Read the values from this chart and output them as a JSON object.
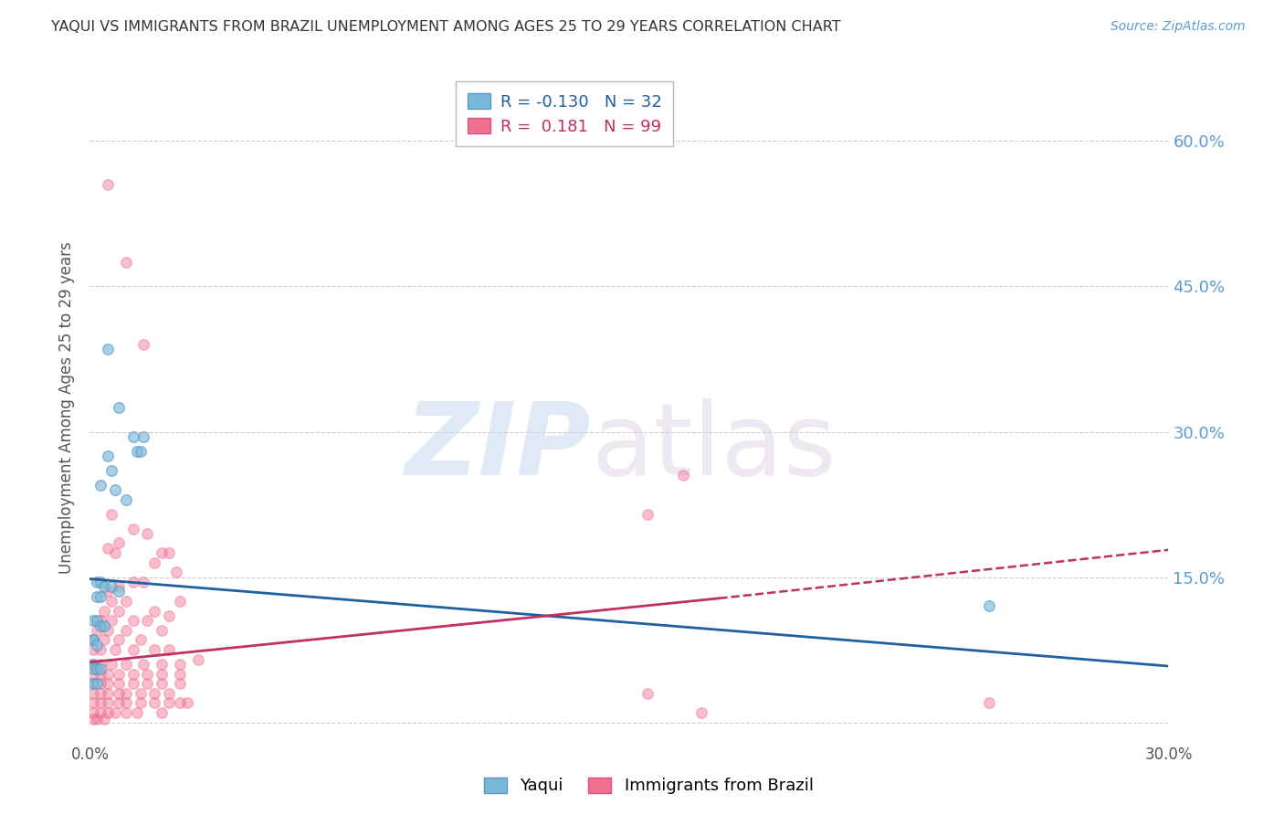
{
  "title": "YAQUI VS IMMIGRANTS FROM BRAZIL UNEMPLOYMENT AMONG AGES 25 TO 29 YEARS CORRELATION CHART",
  "source": "Source: ZipAtlas.com",
  "ylabel": "Unemployment Among Ages 25 to 29 years",
  "xlim": [
    0.0,
    0.3
  ],
  "ylim": [
    -0.02,
    0.67
  ],
  "yticks": [
    0.0,
    0.15,
    0.3,
    0.45,
    0.6
  ],
  "ytick_labels": [
    "",
    "15.0%",
    "30.0%",
    "45.0%",
    "60.0%"
  ],
  "xticks": [
    0.0,
    0.05,
    0.1,
    0.15,
    0.2,
    0.25,
    0.3
  ],
  "xtick_labels": [
    "0.0%",
    "",
    "",
    "",
    "",
    "",
    "30.0%"
  ],
  "yaqui_color": "#7ab8d9",
  "brazil_color": "#f07090",
  "yaqui_edge": "#5a98c0",
  "brazil_edge": "#e05080",
  "yaqui_R": -0.13,
  "yaqui_N": 32,
  "brazil_R": 0.181,
  "brazil_N": 99,
  "background_color": "#ffffff",
  "grid_color": "#cccccc",
  "title_color": "#333333",
  "right_ytick_color": "#5b9bd5",
  "yaqui_line_color": "#2060a0",
  "brazil_line_color": "#c03060",
  "yaqui_scatter": [
    [
      0.005,
      0.385
    ],
    [
      0.008,
      0.325
    ],
    [
      0.012,
      0.295
    ],
    [
      0.015,
      0.295
    ],
    [
      0.005,
      0.275
    ],
    [
      0.006,
      0.26
    ],
    [
      0.003,
      0.245
    ],
    [
      0.007,
      0.24
    ],
    [
      0.01,
      0.23
    ],
    [
      0.013,
      0.28
    ],
    [
      0.014,
      0.28
    ],
    [
      0.002,
      0.145
    ],
    [
      0.003,
      0.145
    ],
    [
      0.004,
      0.14
    ],
    [
      0.006,
      0.14
    ],
    [
      0.008,
      0.135
    ],
    [
      0.002,
      0.13
    ],
    [
      0.003,
      0.13
    ],
    [
      0.001,
      0.105
    ],
    [
      0.002,
      0.105
    ],
    [
      0.003,
      0.1
    ],
    [
      0.004,
      0.1
    ],
    [
      0.001,
      0.085
    ],
    [
      0.001,
      0.085
    ],
    [
      0.002,
      0.08
    ],
    [
      0.001,
      0.06
    ],
    [
      0.001,
      0.055
    ],
    [
      0.002,
      0.055
    ],
    [
      0.003,
      0.055
    ],
    [
      0.001,
      0.04
    ],
    [
      0.002,
      0.04
    ],
    [
      0.25,
      0.12
    ]
  ],
  "brazil_scatter": [
    [
      0.005,
      0.555
    ],
    [
      0.01,
      0.475
    ],
    [
      0.015,
      0.39
    ],
    [
      0.165,
      0.255
    ],
    [
      0.155,
      0.215
    ],
    [
      0.006,
      0.215
    ],
    [
      0.012,
      0.2
    ],
    [
      0.016,
      0.195
    ],
    [
      0.005,
      0.18
    ],
    [
      0.007,
      0.175
    ],
    [
      0.008,
      0.185
    ],
    [
      0.02,
      0.175
    ],
    [
      0.022,
      0.175
    ],
    [
      0.018,
      0.165
    ],
    [
      0.024,
      0.155
    ],
    [
      0.015,
      0.145
    ],
    [
      0.012,
      0.145
    ],
    [
      0.008,
      0.14
    ],
    [
      0.005,
      0.135
    ],
    [
      0.006,
      0.125
    ],
    [
      0.01,
      0.125
    ],
    [
      0.025,
      0.125
    ],
    [
      0.004,
      0.115
    ],
    [
      0.008,
      0.115
    ],
    [
      0.018,
      0.115
    ],
    [
      0.022,
      0.11
    ],
    [
      0.003,
      0.105
    ],
    [
      0.006,
      0.105
    ],
    [
      0.012,
      0.105
    ],
    [
      0.016,
      0.105
    ],
    [
      0.002,
      0.095
    ],
    [
      0.005,
      0.095
    ],
    [
      0.01,
      0.095
    ],
    [
      0.02,
      0.095
    ],
    [
      0.001,
      0.085
    ],
    [
      0.004,
      0.085
    ],
    [
      0.008,
      0.085
    ],
    [
      0.014,
      0.085
    ],
    [
      0.001,
      0.075
    ],
    [
      0.003,
      0.075
    ],
    [
      0.007,
      0.075
    ],
    [
      0.012,
      0.075
    ],
    [
      0.018,
      0.075
    ],
    [
      0.022,
      0.075
    ],
    [
      0.001,
      0.06
    ],
    [
      0.003,
      0.06
    ],
    [
      0.006,
      0.06
    ],
    [
      0.01,
      0.06
    ],
    [
      0.015,
      0.06
    ],
    [
      0.02,
      0.06
    ],
    [
      0.025,
      0.06
    ],
    [
      0.001,
      0.05
    ],
    [
      0.003,
      0.05
    ],
    [
      0.005,
      0.05
    ],
    [
      0.008,
      0.05
    ],
    [
      0.012,
      0.05
    ],
    [
      0.016,
      0.05
    ],
    [
      0.02,
      0.05
    ],
    [
      0.025,
      0.05
    ],
    [
      0.001,
      0.04
    ],
    [
      0.003,
      0.04
    ],
    [
      0.005,
      0.04
    ],
    [
      0.008,
      0.04
    ],
    [
      0.012,
      0.04
    ],
    [
      0.016,
      0.04
    ],
    [
      0.02,
      0.04
    ],
    [
      0.025,
      0.04
    ],
    [
      0.001,
      0.03
    ],
    [
      0.003,
      0.03
    ],
    [
      0.005,
      0.03
    ],
    [
      0.008,
      0.03
    ],
    [
      0.01,
      0.03
    ],
    [
      0.014,
      0.03
    ],
    [
      0.018,
      0.03
    ],
    [
      0.022,
      0.03
    ],
    [
      0.001,
      0.02
    ],
    [
      0.003,
      0.02
    ],
    [
      0.005,
      0.02
    ],
    [
      0.008,
      0.02
    ],
    [
      0.01,
      0.02
    ],
    [
      0.014,
      0.02
    ],
    [
      0.018,
      0.02
    ],
    [
      0.022,
      0.02
    ],
    [
      0.025,
      0.02
    ],
    [
      0.027,
      0.02
    ],
    [
      0.001,
      0.01
    ],
    [
      0.003,
      0.01
    ],
    [
      0.005,
      0.01
    ],
    [
      0.007,
      0.01
    ],
    [
      0.01,
      0.01
    ],
    [
      0.013,
      0.01
    ],
    [
      0.02,
      0.01
    ],
    [
      0.001,
      0.003
    ],
    [
      0.002,
      0.003
    ],
    [
      0.004,
      0.003
    ],
    [
      0.03,
      0.065
    ],
    [
      0.155,
      0.03
    ],
    [
      0.17,
      0.01
    ],
    [
      0.25,
      0.02
    ]
  ],
  "yaqui_line": [
    0.0,
    0.148,
    0.3,
    0.058
  ],
  "brazil_line_solid": [
    0.0,
    0.062,
    0.175,
    0.128
  ],
  "brazil_line_dashed": [
    0.175,
    0.128,
    0.3,
    0.178
  ]
}
